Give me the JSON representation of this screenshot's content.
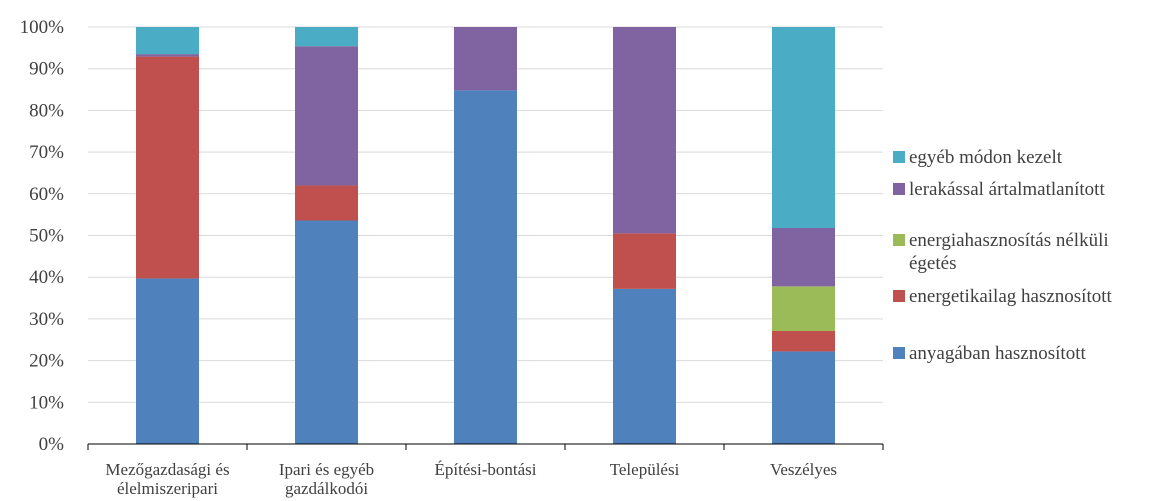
{
  "chart_data": {
    "type": "bar",
    "stacked": true,
    "normalized_percent": true,
    "categories": [
      [
        "Mezőgazdasági és",
        "élelmiszeripari"
      ],
      [
        "Ipari és egyéb",
        "gazdálkodói"
      ],
      [
        "Építési-bontási"
      ],
      [
        "Települési"
      ],
      [
        "Veszélyes"
      ]
    ],
    "ylim": [
      0,
      100
    ],
    "yticks": [
      "0%",
      "10%",
      "20%",
      "30%",
      "40%",
      "50%",
      "60%",
      "70%",
      "80%",
      "90%",
      "100%"
    ],
    "grid": true,
    "legend_position": "right",
    "series": [
      {
        "name": "anyagában hasznosított",
        "color": "#4F81BD",
        "values": [
          39.7,
          53.6,
          84.8,
          37.2,
          22.2
        ]
      },
      {
        "name": "energetikailag hasznosított",
        "color": "#C0504D",
        "values": [
          53.2,
          8.4,
          0.0,
          13.3,
          4.9
        ]
      },
      {
        "name": "energiahasznosítás nélküli égetés",
        "name_lines": [
          "energiahasznosítás nélküli",
          "égetés"
        ],
        "color": "#9BBB59",
        "values": [
          0.0,
          0.0,
          0.0,
          0.0,
          10.7
        ]
      },
      {
        "name": "lerakással ártalmatlanított",
        "color": "#8064A2",
        "values": [
          0.6,
          33.4,
          15.2,
          49.5,
          14.0
        ]
      },
      {
        "name": "egyéb módon kezelt",
        "color": "#4BACC6",
        "values": [
          6.5,
          4.6,
          0.0,
          0.0,
          48.2
        ]
      }
    ]
  }
}
